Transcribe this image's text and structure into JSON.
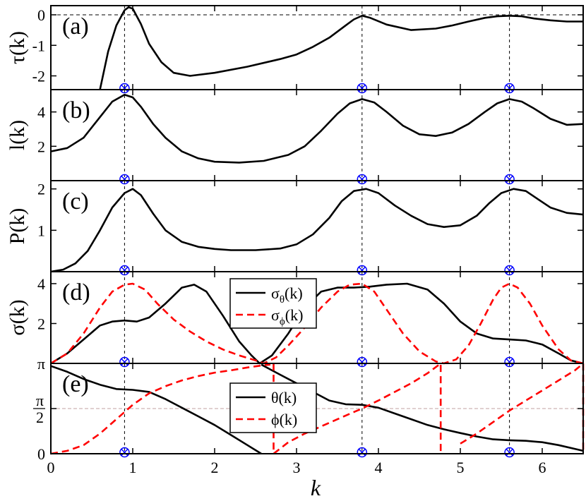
{
  "chart_data": {
    "type": "line",
    "xlabel": "k",
    "xlim": [
      0,
      6.5
    ],
    "x_ticks": [
      "0",
      "1",
      "2",
      "3",
      "4",
      "5",
      "6"
    ],
    "x_tick_values": [
      0,
      1,
      2,
      3,
      4,
      5,
      6
    ],
    "vertical_markers_x": [
      0.9,
      3.8,
      5.6
    ],
    "colors": {
      "black": "#000000",
      "red": "#ff0000",
      "marker": "#0000ff",
      "ref_line": "#c0a0a0"
    },
    "panels": [
      {
        "label": "(a)",
        "ylabel": "τ(k)",
        "ylim": [
          -2.45,
          0.3
        ],
        "y_ticks": [
          {
            "v": 0,
            "t": "0"
          },
          {
            "v": -1,
            "t": "-1"
          },
          {
            "v": -2,
            "t": "-2"
          }
        ],
        "hline": 0,
        "series": [
          {
            "name": "",
            "color": "#000000",
            "dashed": false,
            "x": [
              0.6,
              0.7,
              0.8,
              0.9,
              0.95,
              1.0,
              1.1,
              1.2,
              1.35,
              1.5,
              1.7,
              2.0,
              2.4,
              2.8,
              3.0,
              3.2,
              3.4,
              3.6,
              3.7,
              3.8,
              3.9,
              4.1,
              4.4,
              4.7,
              4.9,
              5.1,
              5.3,
              5.45,
              5.6,
              5.75,
              5.9,
              6.1,
              6.3,
              6.5
            ],
            "y": [
              -2.45,
              -1.2,
              -0.35,
              0.15,
              0.25,
              0.2,
              -0.3,
              -0.95,
              -1.55,
              -1.9,
              -2.0,
              -1.9,
              -1.7,
              -1.45,
              -1.3,
              -1.05,
              -0.75,
              -0.35,
              -0.15,
              -0.03,
              -0.1,
              -0.32,
              -0.5,
              -0.45,
              -0.35,
              -0.22,
              -0.1,
              -0.05,
              -0.03,
              -0.05,
              -0.12,
              -0.18,
              -0.22,
              -0.22
            ]
          }
        ]
      },
      {
        "label": "(b)",
        "ylabel": "l(k)",
        "ylim": [
          0,
          5.3
        ],
        "y_ticks": [
          {
            "v": 2,
            "t": "2"
          },
          {
            "v": 4,
            "t": "4"
          }
        ],
        "series": [
          {
            "name": "",
            "color": "#000000",
            "dashed": false,
            "x": [
              0,
              0.2,
              0.4,
              0.6,
              0.75,
              0.9,
              1.0,
              1.1,
              1.25,
              1.4,
              1.6,
              1.8,
              2.0,
              2.3,
              2.6,
              2.9,
              3.1,
              3.3,
              3.5,
              3.65,
              3.8,
              3.95,
              4.1,
              4.3,
              4.5,
              4.7,
              4.9,
              5.1,
              5.3,
              5.45,
              5.6,
              5.75,
              5.9,
              6.1,
              6.3,
              6.5
            ],
            "y": [
              1.7,
              1.9,
              2.5,
              3.7,
              4.6,
              5.0,
              4.85,
              4.3,
              3.3,
              2.5,
              1.7,
              1.3,
              1.1,
              1.05,
              1.15,
              1.5,
              2.0,
              2.9,
              3.9,
              4.5,
              4.75,
              4.55,
              4.0,
              3.2,
              2.7,
              2.6,
              2.8,
              3.3,
              4.0,
              4.5,
              4.75,
              4.6,
              4.2,
              3.6,
              3.25,
              3.3
            ]
          }
        ]
      },
      {
        "label": "(c)",
        "ylabel": "P(k)",
        "ylim": [
          0,
          2.2
        ],
        "y_ticks": [
          {
            "v": 1,
            "t": "1"
          },
          {
            "v": 2,
            "t": "2"
          }
        ],
        "series": [
          {
            "name": "",
            "color": "#000000",
            "dashed": false,
            "x": [
              0,
              0.15,
              0.3,
              0.45,
              0.6,
              0.75,
              0.9,
              1.0,
              1.1,
              1.25,
              1.4,
              1.6,
              1.8,
              2.0,
              2.2,
              2.5,
              2.8,
              3.0,
              3.2,
              3.4,
              3.55,
              3.7,
              3.85,
              4.0,
              4.2,
              4.4,
              4.6,
              4.8,
              5.0,
              5.2,
              5.35,
              5.5,
              5.65,
              5.8,
              5.95,
              6.1,
              6.3,
              6.5
            ],
            "y": [
              0.0,
              0.05,
              0.2,
              0.5,
              1.0,
              1.55,
              1.9,
              2.0,
              1.85,
              1.4,
              1.0,
              0.72,
              0.6,
              0.55,
              0.52,
              0.52,
              0.56,
              0.66,
              0.9,
              1.3,
              1.7,
              1.95,
              2.0,
              1.9,
              1.6,
              1.35,
              1.15,
              1.08,
              1.12,
              1.35,
              1.65,
              1.9,
              2.0,
              1.95,
              1.75,
              1.55,
              1.42,
              1.38
            ]
          }
        ]
      },
      {
        "label": "(d)",
        "ylabel": "σ(k)",
        "ylim": [
          0,
          4.6
        ],
        "y_ticks": [
          {
            "v": 2,
            "t": "2"
          },
          {
            "v": 4,
            "t": "4"
          }
        ],
        "legend": {
          "position": "center-left",
          "entries": [
            {
              "main": "σ",
              "sub": "θ",
              "tail": "(k)",
              "color": "#000000",
              "dashed": false
            },
            {
              "main": "σ",
              "sub": "ϕ",
              "tail": "(k)",
              "color": "#ff0000",
              "dashed": true
            }
          ]
        },
        "series": [
          {
            "name": "σθ(k)",
            "color": "#000000",
            "dashed": false,
            "x": [
              0,
              0.2,
              0.4,
              0.6,
              0.75,
              0.9,
              1.05,
              1.2,
              1.4,
              1.6,
              1.75,
              1.9,
              2.1,
              2.3,
              2.45,
              2.55,
              2.7,
              2.9,
              3.1,
              3.3,
              3.5,
              3.7,
              3.9,
              4.1,
              4.35,
              4.6,
              4.8,
              5.0,
              5.2,
              5.4,
              5.6,
              5.8,
              6.0,
              6.2,
              6.35,
              6.5
            ],
            "y": [
              0.0,
              0.5,
              1.2,
              1.9,
              2.1,
              2.15,
              2.1,
              2.3,
              3.0,
              3.8,
              3.95,
              3.6,
              2.4,
              1.1,
              0.4,
              0.0,
              0.4,
              1.5,
              2.8,
              3.6,
              3.8,
              3.8,
              3.85,
              3.95,
              4.0,
              3.7,
              3.0,
              2.1,
              1.5,
              1.25,
              1.2,
              1.15,
              0.95,
              0.5,
              0.15,
              0.0
            ]
          },
          {
            "name": "σϕ(k)",
            "color": "#ff0000",
            "dashed": true,
            "x": [
              0,
              0.2,
              0.4,
              0.6,
              0.75,
              0.9,
              1.0,
              1.15,
              1.3,
              1.5,
              1.7,
              1.9,
              2.1,
              2.3,
              2.5,
              2.6,
              2.75,
              2.9,
              3.1,
              3.3,
              3.5,
              3.65,
              3.8,
              3.95,
              4.1,
              4.3,
              4.5,
              4.7,
              4.8,
              4.95,
              5.1,
              5.25,
              5.4,
              5.5,
              5.6,
              5.7,
              5.85,
              6.0,
              6.2,
              6.35,
              6.5
            ],
            "y": [
              0.0,
              0.5,
              1.5,
              2.8,
              3.6,
              3.95,
              4.0,
              3.7,
              3.0,
              2.2,
              1.6,
              1.1,
              0.7,
              0.4,
              0.15,
              0.0,
              0.3,
              0.9,
              1.8,
              2.8,
              3.6,
              3.95,
              4.0,
              3.6,
              2.7,
              1.5,
              0.6,
              0.1,
              0.0,
              0.2,
              0.9,
              2.0,
              3.2,
              3.8,
              4.0,
              3.8,
              3.0,
              1.9,
              0.7,
              0.15,
              0.0
            ]
          }
        ]
      },
      {
        "label": "(e)",
        "ylabel": "",
        "ylim": [
          0,
          3.1416
        ],
        "y_ticks": [
          {
            "v": 0,
            "t": "0"
          },
          {
            "v": 1.5708,
            "t": "π/2"
          },
          {
            "v": 3.1416,
            "t": "π"
          }
        ],
        "hlines_ref": [
          1.5708,
          3.1416
        ],
        "legend": {
          "position": "center-left",
          "entries": [
            {
              "main": "θ",
              "sub": "",
              "tail": "(k)",
              "color": "#000000",
              "dashed": false
            },
            {
              "main": "ϕ",
              "sub": "",
              "tail": "(k)",
              "color": "#ff0000",
              "dashed": true
            }
          ]
        },
        "series": [
          {
            "name": "θ(k)",
            "color": "#000000",
            "dashed": false,
            "x": [
              0,
              0.2,
              0.4,
              0.6,
              0.8,
              1.0,
              1.2,
              1.4,
              1.6,
              1.8,
              2.0,
              2.2,
              2.4,
              2.57,
              2.57,
              2.57,
              2.8,
              3.0,
              3.2,
              3.4,
              3.6,
              3.8,
              4.0,
              4.2,
              4.4,
              4.6,
              4.8,
              5.0,
              5.2,
              5.4,
              5.6,
              5.8,
              6.0,
              6.2,
              6.5
            ],
            "y": [
              3.05,
              2.85,
              2.6,
              2.4,
              2.25,
              2.22,
              2.15,
              1.9,
              1.6,
              1.3,
              1.0,
              0.65,
              0.3,
              0.0,
              null,
              3.1,
              2.75,
              2.45,
              2.15,
              1.85,
              1.72,
              1.7,
              1.6,
              1.4,
              1.2,
              1.0,
              0.85,
              0.72,
              0.6,
              0.5,
              0.47,
              0.45,
              0.4,
              0.3,
              0.1
            ]
          },
          {
            "name": "ϕ(k)",
            "color": "#ff0000",
            "dashed": true,
            "x": [
              0,
              0.2,
              0.4,
              0.6,
              0.8,
              0.9,
              1.0,
              1.2,
              1.4,
              1.6,
              1.8,
              2.0,
              2.2,
              2.4,
              2.6,
              2.68,
              2.68,
              2.72,
              2.72,
              2.9,
              3.1,
              3.3,
              3.5,
              3.7,
              3.8,
              4.0,
              4.2,
              4.4,
              4.6,
              4.76,
              4.76,
              4.76,
              5.0,
              5.2,
              5.4,
              5.6,
              5.8,
              6.0,
              6.2,
              6.4,
              6.5,
              6.5
            ],
            "y": [
              0.0,
              0.1,
              0.3,
              0.7,
              1.2,
              1.45,
              1.7,
              2.1,
              2.35,
              2.55,
              2.7,
              2.82,
              2.9,
              3.0,
              3.08,
              3.1,
              null,
              3.14,
              0.0,
              0.4,
              0.7,
              0.95,
              1.2,
              1.45,
              1.57,
              1.85,
              2.15,
              2.45,
              2.8,
              3.14,
              0.0,
              null,
              0.35,
              0.7,
              1.1,
              1.5,
              1.85,
              2.2,
              2.55,
              2.9,
              3.14,
              0.0
            ]
          }
        ]
      }
    ]
  }
}
